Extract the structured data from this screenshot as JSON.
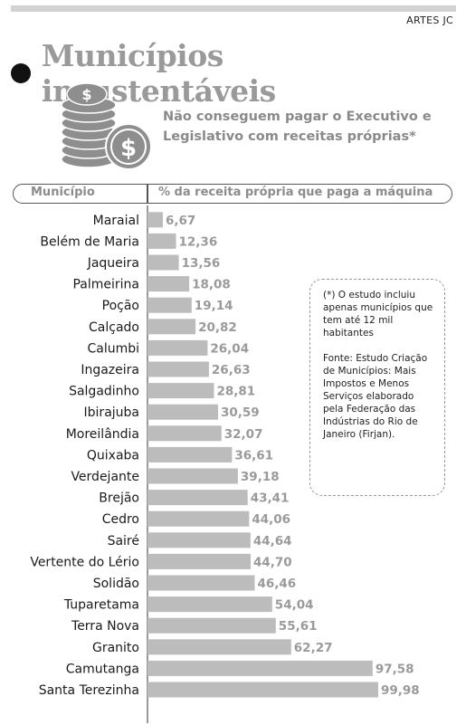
{
  "credit": "ARTES JC",
  "title": "Municípios insustentáveis",
  "subtitle": "Não conseguem pagar o Executivo e Legislativo com receitas próprias*",
  "icon": "coin-stack-icon",
  "table_header": {
    "left": "Município",
    "right": "% da receita própria que paga a máquina"
  },
  "note": {
    "asterisk": "(*) O estudo incluiu apenas municípios que tem até 12 mil habitantes",
    "source": "Fonte: Estudo Criação de Municípios: Mais Impostos e Menos Serviços elaborado pela Federação das Indústrias do Rio de Janeiro (Firjan)."
  },
  "colors": {
    "bar": "#bcbcbc",
    "value_text": "#9a9a9a",
    "title": "#9a9a9a"
  },
  "chart_data": {
    "type": "bar",
    "orientation": "horizontal",
    "title": "Municípios insustentáveis",
    "subtitle": "Não conseguem pagar o Executivo e Legislativo com receitas próprias*",
    "xlabel": "% da receita própria que paga a máquina",
    "ylabel": "Município",
    "xlim": [
      0,
      100
    ],
    "grid": false,
    "categories": [
      "Maraial",
      "Belém de Maria",
      "Jaqueira",
      "Palmeirina",
      "Poção",
      "Calçado",
      "Calumbi",
      "Ingazeira",
      "Salgadinho",
      "Ibirajuba",
      "Moreilândia",
      "Quixaba",
      "Verdejante",
      "Brejão",
      "Cedro",
      "Sairé",
      "Vertente do Lério",
      "Solidão",
      "Tuparetama",
      "Terra Nova",
      "Granito",
      "Camutanga",
      "Santa Terezinha"
    ],
    "values": [
      6.67,
      12.36,
      13.56,
      18.08,
      19.14,
      20.82,
      26.04,
      26.63,
      28.81,
      30.59,
      32.07,
      36.61,
      39.18,
      43.41,
      44.06,
      44.64,
      44.7,
      46.46,
      54.04,
      55.61,
      62.27,
      97.58,
      99.98
    ],
    "value_labels": [
      "6,67",
      "12,36",
      "13,56",
      "18,08",
      "19,14",
      "20,82",
      "26,04",
      "26,63",
      "28,81",
      "30,59",
      "32,07",
      "36,61",
      "39,18",
      "43,41",
      "44,06",
      "44,64",
      "44,70",
      "46,46",
      "54,04",
      "55,61",
      "62,27",
      "97,58",
      "99,98"
    ]
  }
}
